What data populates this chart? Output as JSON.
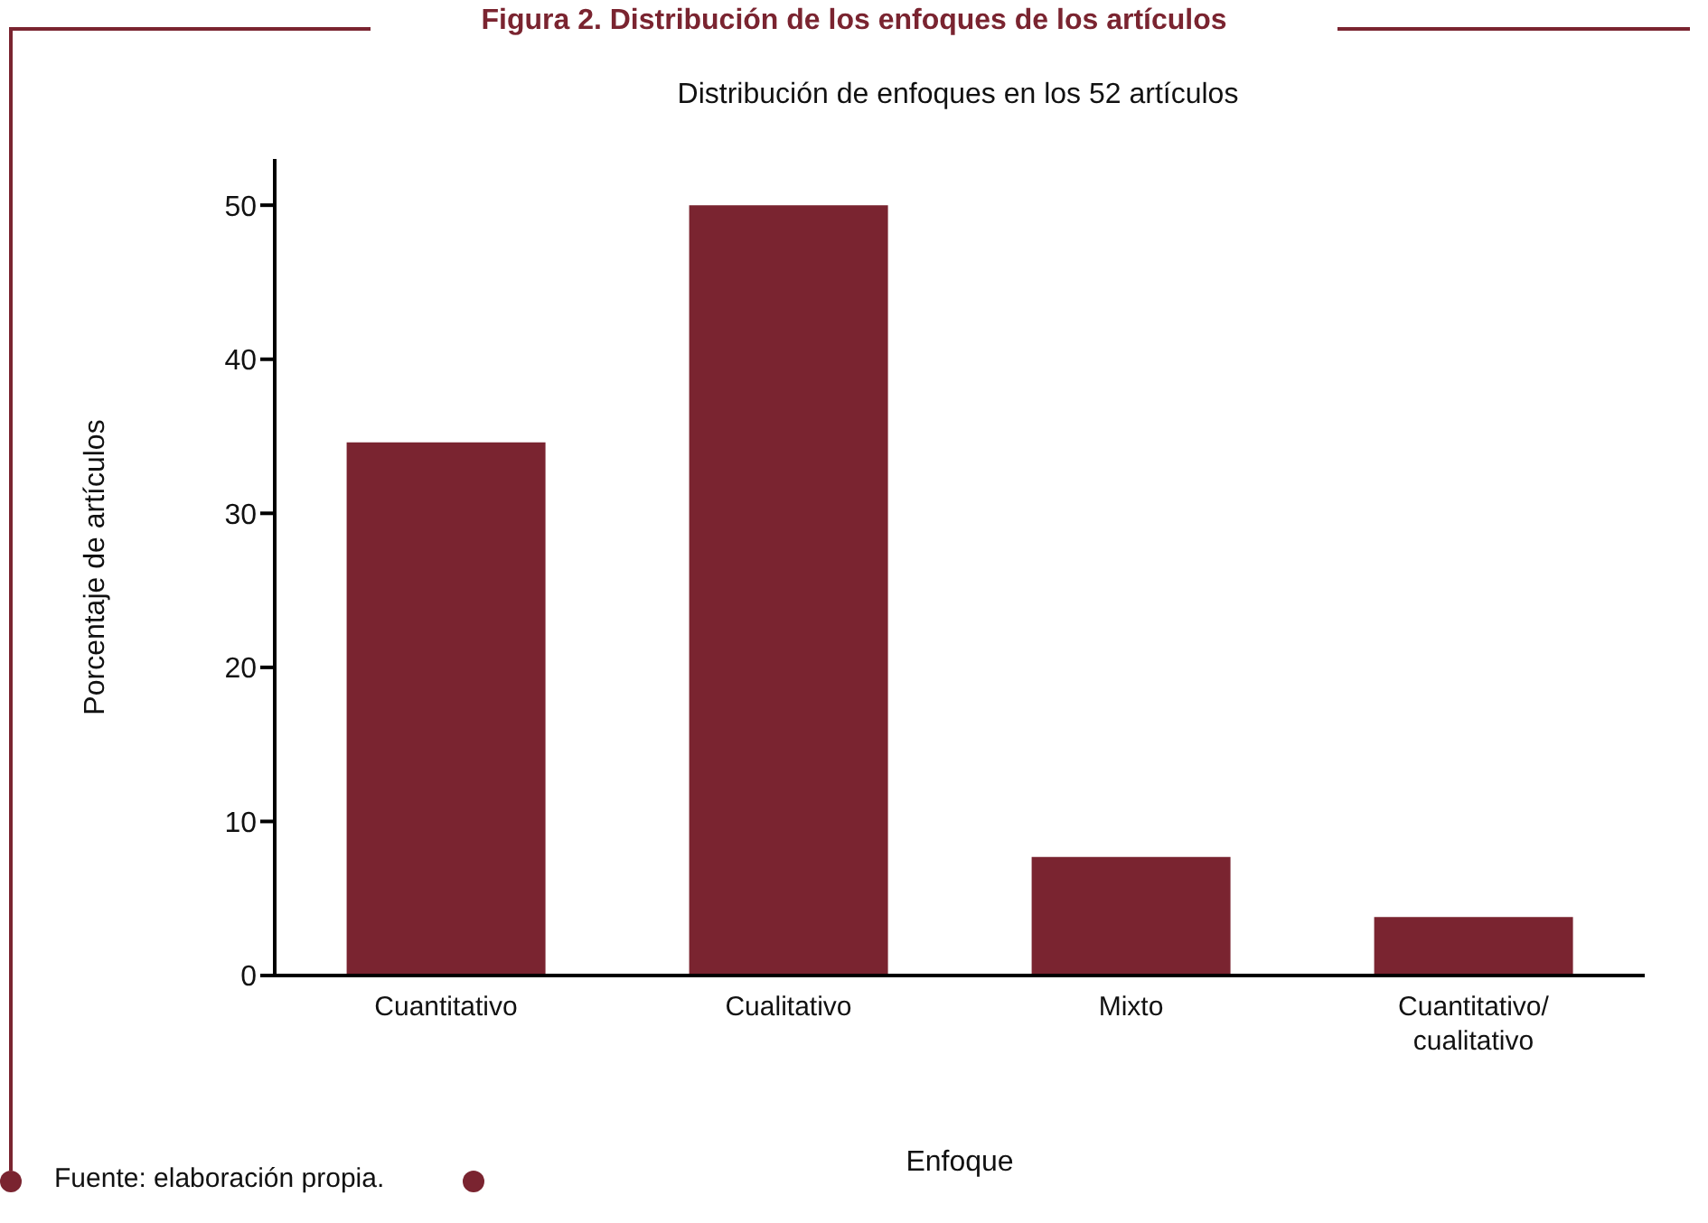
{
  "chart_data": {
    "type": "bar",
    "title": "Figura 2. Distribución de los enfoques de los artículos",
    "subtitle": "Distribución de enfoques en los 52 artículos",
    "xlabel": "Enfoque",
    "ylabel": "Porcentaje de artículos",
    "categories": [
      "Cuantitativo",
      "Cualitativo",
      "Mixto",
      "Cuantitativo/cualitativo"
    ],
    "values": [
      34.6,
      50,
      7.7,
      3.8
    ],
    "color": "#7a2430",
    "ylim": [
      0,
      53
    ],
    "yticks": [
      0,
      10,
      20,
      30,
      40,
      50
    ],
    "grid": false,
    "legend": false,
    "annotations": [
      "Fuente: elaboración propia."
    ]
  }
}
